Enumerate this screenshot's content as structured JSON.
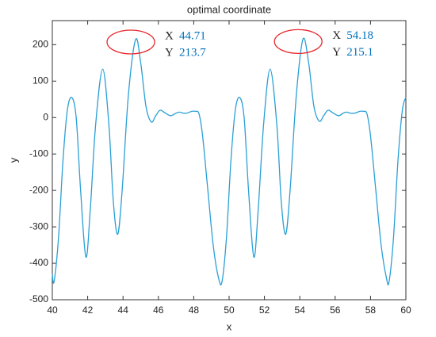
{
  "chart_data": {
    "type": "line",
    "title": "optimal coordinate",
    "x_label": "x",
    "y_label": "y",
    "x": [
      40.0,
      40.1,
      40.35,
      40.6,
      40.85,
      41.1,
      41.35,
      41.6,
      41.9,
      42.15,
      42.45,
      42.85,
      43.2,
      43.45,
      43.7,
      43.95,
      44.3,
      44.71,
      45.0,
      45.3,
      45.6,
      45.85,
      46.1,
      46.4,
      46.7,
      47.0,
      47.2,
      47.4,
      47.6,
      47.9,
      48.1,
      48.3,
      48.5,
      48.8,
      49.1,
      49.4,
      49.6,
      49.85,
      50.1,
      50.35,
      50.6,
      50.85,
      51.1,
      51.4,
      51.65,
      51.95,
      52.32,
      52.7,
      52.95,
      53.2,
      53.45,
      53.8,
      54.18,
      54.5,
      54.8,
      55.1,
      55.35,
      55.6,
      55.9,
      56.2,
      56.45,
      56.65,
      56.85,
      57.1,
      57.4,
      57.6,
      57.8,
      58.0,
      58.3,
      58.6,
      58.9,
      59.05,
      59.3,
      59.55,
      59.8,
      60.0
    ],
    "series": [
      {
        "name": "y",
        "color": "#2a9fd6",
        "values": [
          -430,
          -450,
          -330,
          -120,
          20,
          55,
          0,
          -200,
          -383,
          -250,
          -20,
          133,
          -20,
          -230,
          -320,
          -200,
          60,
          213.7,
          150,
          30,
          -12,
          5,
          20,
          12,
          5,
          12,
          15,
          12,
          12,
          17,
          17,
          10,
          -50,
          -200,
          -350,
          -440,
          -450,
          -330,
          -120,
          20,
          55,
          0,
          -200,
          -383,
          -250,
          -20,
          133,
          -20,
          -230,
          -320,
          -200,
          60,
          215.1,
          150,
          30,
          -10,
          5,
          20,
          12,
          5,
          12,
          15,
          12,
          12,
          17,
          17,
          10,
          -50,
          -200,
          -350,
          -440,
          -450,
          -330,
          -120,
          20,
          55
        ]
      }
    ],
    "xlim": [
      40,
      60
    ],
    "xticks": [
      40,
      42,
      44,
      46,
      48,
      50,
      52,
      54,
      56,
      58,
      60
    ],
    "ylim": [
      -500,
      266
    ],
    "yticks": [
      -500,
      -400,
      -300,
      -200,
      -100,
      0,
      100,
      200
    ],
    "annotations": [
      {
        "x_label": "X",
        "x": 44.71,
        "y_label": "Y",
        "y": 213.7,
        "color": "#0072bd",
        "marker_color": "#e8262b"
      },
      {
        "x_label": "X",
        "x": 54.18,
        "y_label": "Y",
        "y": 215.1,
        "color": "#0072bd",
        "marker_color": "#e8262b"
      }
    ]
  }
}
